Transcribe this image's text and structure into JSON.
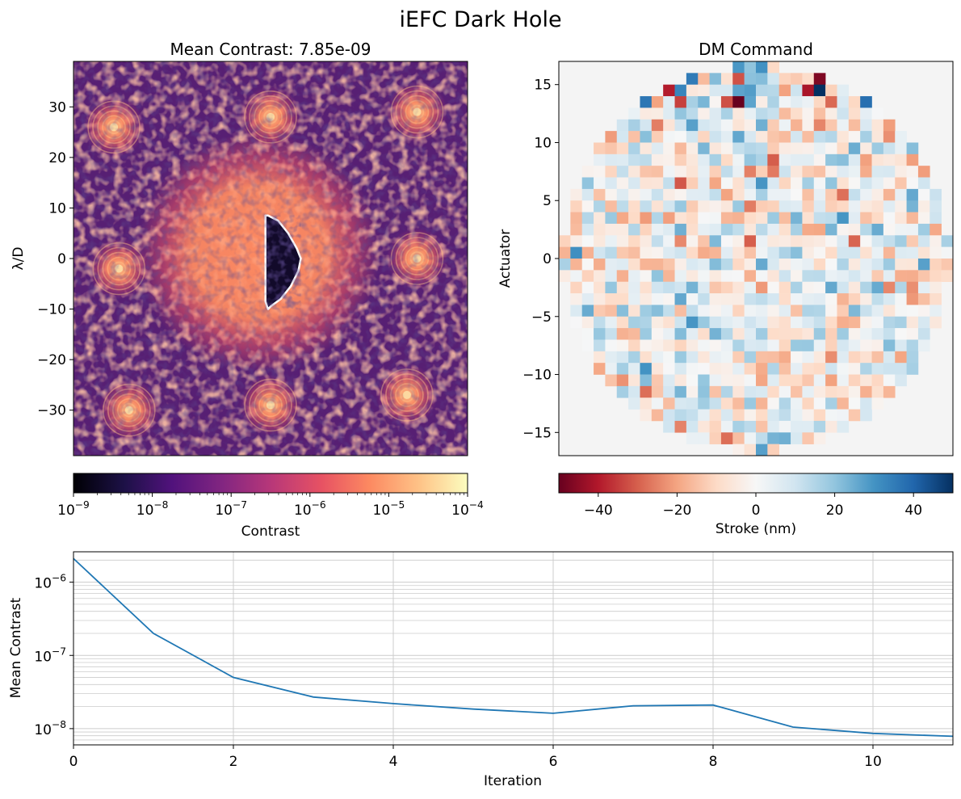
{
  "figure": {
    "suptitle": "iEFC Dark Hole"
  },
  "colors": {
    "line": "#1f77b4",
    "frame": "#000000",
    "grid": "#cccccc",
    "dh_outline": "#ffffff"
  },
  "chart_data": [
    {
      "type": "heatmap",
      "title": "Mean Contrast: 7.85e-09",
      "xlabel": "",
      "ylabel": "λ/D",
      "xlim": [
        -39,
        39
      ],
      "ylim": [
        -39,
        39
      ],
      "xticks": [
        -30,
        -20,
        -10,
        0,
        10,
        20,
        30
      ],
      "yticks": [
        -30,
        -20,
        -10,
        0,
        10,
        20,
        30
      ],
      "colormap": "magma",
      "color_scale": "log",
      "colorbar": {
        "label": "Contrast",
        "range": [
          1e-09,
          0.0001
        ],
        "ticks": [
          {
            "value": 1e-09,
            "label": "10",
            "exp": "−9"
          },
          {
            "value": 1e-08,
            "label": "10",
            "exp": "−8"
          },
          {
            "value": 1e-07,
            "label": "10",
            "exp": "−7"
          },
          {
            "value": 1e-06,
            "label": "10",
            "exp": "−6"
          },
          {
            "value": 1e-05,
            "label": "10",
            "exp": "−5"
          },
          {
            "value": 0.0001,
            "label": "10",
            "exp": "−4"
          }
        ]
      },
      "speckle_spots": [
        {
          "x": -31,
          "y": 26
        },
        {
          "x": 0,
          "y": 28
        },
        {
          "x": 29,
          "y": 29
        },
        {
          "x": -30,
          "y": -2
        },
        {
          "x": 29,
          "y": 0
        },
        {
          "x": -28,
          "y": -30
        },
        {
          "x": 0,
          "y": -29
        },
        {
          "x": 27,
          "y": -27
        }
      ],
      "dark_hole_outline": [
        [
          -0.5,
          8.5
        ],
        [
          1.5,
          7.5
        ],
        [
          3.5,
          5
        ],
        [
          5.2,
          2
        ],
        [
          6,
          0
        ],
        [
          5.5,
          -2.5
        ],
        [
          4,
          -5.5
        ],
        [
          2,
          -8
        ],
        [
          0,
          -9.5
        ],
        [
          -0.5,
          -10
        ],
        [
          -1,
          -8.5
        ],
        [
          -1,
          8.5
        ],
        [
          -0.5,
          8.5
        ]
      ]
    },
    {
      "type": "heatmap",
      "title": "DM Command",
      "xlabel": "",
      "ylabel": "Actuator",
      "xlim": [
        -17,
        17
      ],
      "ylim": [
        -17,
        17
      ],
      "yticks": [
        -15,
        -10,
        -5,
        0,
        5,
        10,
        15
      ],
      "grid_size": 34,
      "pupil_radius": 16.6,
      "colormap": "RdBu",
      "colorbar": {
        "label": "Stroke (nm)",
        "range": [
          -50,
          50
        ],
        "ticks": [
          -40,
          -20,
          0,
          20,
          40
        ],
        "tick_labels": [
          "−40",
          "−20",
          "0",
          "20",
          "40"
        ]
      },
      "pixels_note_stroke_range_nm": [
        -50,
        50
      ]
    },
    {
      "type": "line",
      "title": "",
      "xlabel": "Iteration",
      "ylabel": "Mean Contrast",
      "y_scale": "log",
      "xlim": [
        0,
        11
      ],
      "ylim": [
        6e-09,
        2.6e-06
      ],
      "xticks": [
        0,
        2,
        4,
        6,
        8,
        10
      ],
      "yticks": [
        {
          "value": 1e-06,
          "label": "10",
          "exp": "−6"
        },
        {
          "value": 1e-07,
          "label": "10",
          "exp": "−7"
        },
        {
          "value": 1e-08,
          "label": "10",
          "exp": "−8"
        }
      ],
      "grid": true,
      "series": [
        {
          "x": [
            0,
            1,
            2,
            3,
            4,
            5,
            6,
            7,
            8,
            9,
            10,
            11
          ],
          "values": [
            2.1e-06,
            2e-07,
            5e-08,
            2.7e-08,
            2.2e-08,
            1.85e-08,
            1.62e-08,
            2.05e-08,
            2.1e-08,
            1.05e-08,
            8.6e-09,
            7.85e-09
          ]
        }
      ]
    }
  ]
}
